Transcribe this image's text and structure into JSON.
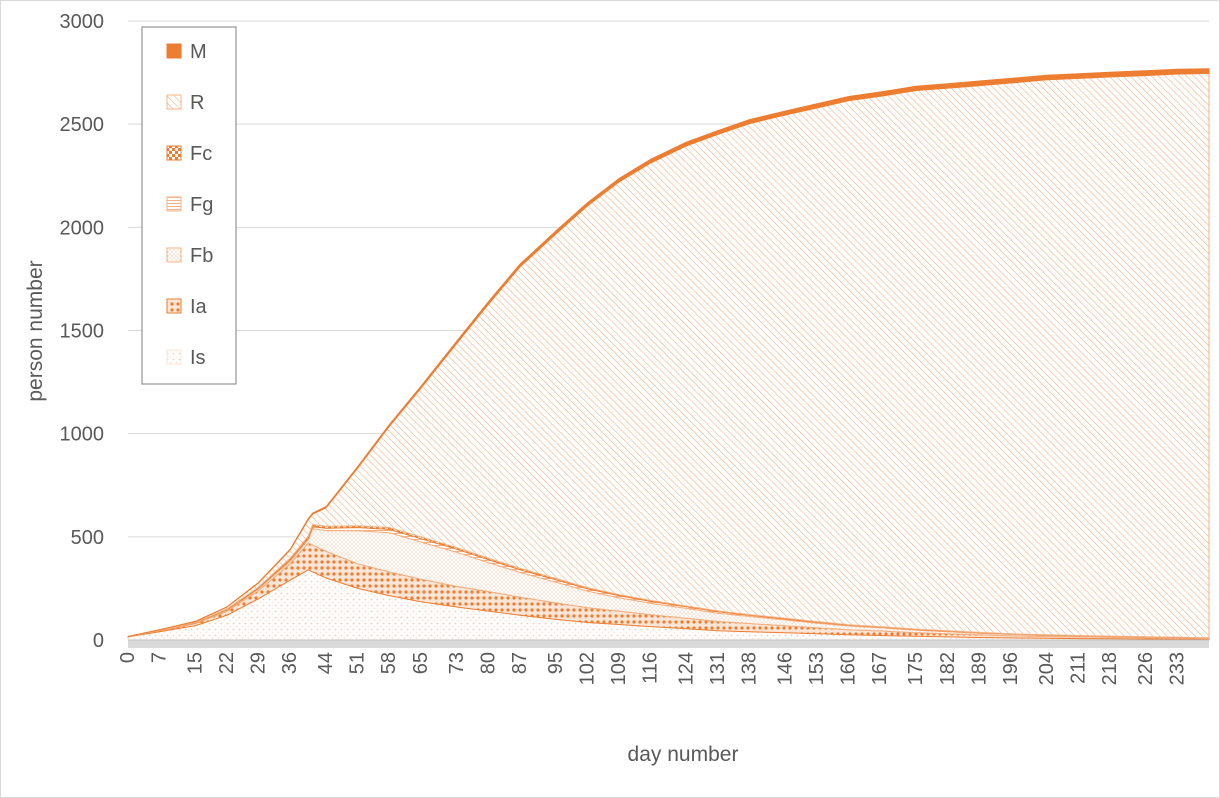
{
  "chart_data": {
    "type": "area",
    "stacked": true,
    "xlabel": "day number",
    "ylabel": "person number",
    "ylim": [
      0,
      3000
    ],
    "yticks": [
      0,
      500,
      1000,
      1500,
      2000,
      2500,
      3000
    ],
    "xlim": [
      0,
      240
    ],
    "xticks": [
      0,
      7,
      15,
      22,
      29,
      36,
      44,
      51,
      58,
      65,
      73,
      80,
      87,
      95,
      102,
      109,
      116,
      124,
      131,
      138,
      146,
      153,
      160,
      167,
      175,
      182,
      189,
      196,
      204,
      211,
      218,
      226,
      233
    ],
    "grid": "horizontal",
    "legend_position": "top-left",
    "x": [
      0,
      7,
      15,
      22,
      29,
      36,
      40,
      41,
      44,
      51,
      58,
      65,
      73,
      80,
      87,
      95,
      102,
      109,
      116,
      124,
      131,
      138,
      146,
      153,
      160,
      167,
      175,
      182,
      189,
      196,
      204,
      211,
      218,
      226,
      233,
      240
    ],
    "series": [
      {
        "name": "Is",
        "color": "#fbe5d6",
        "values": [
          15,
          40,
          70,
          120,
          200,
          290,
          340,
          330,
          300,
          250,
          215,
          185,
          160,
          140,
          120,
          100,
          85,
          75,
          65,
          55,
          45,
          40,
          35,
          30,
          25,
          22,
          18,
          15,
          12,
          10,
          8,
          7,
          6,
          5,
          4,
          3
        ]
      },
      {
        "name": "Ia",
        "color": "#ed7d31",
        "values": [
          2,
          5,
          10,
          20,
          40,
          80,
          130,
          130,
          130,
          120,
          115,
          110,
          100,
          95,
          88,
          80,
          72,
          65,
          58,
          50,
          45,
          40,
          34,
          29,
          25,
          22,
          18,
          15,
          13,
          11,
          9,
          8,
          7,
          6,
          5,
          4
        ]
      },
      {
        "name": "Fb",
        "color": "#f4b183",
        "values": [
          0,
          1,
          2,
          5,
          8,
          12,
          15,
          80,
          100,
          160,
          190,
          180,
          165,
          140,
          120,
          100,
          80,
          65,
          55,
          48,
          40,
          34,
          28,
          22,
          18,
          15,
          12,
          10,
          8,
          6,
          5,
          4,
          3,
          3,
          2,
          2
        ]
      },
      {
        "name": "Fg",
        "color": "#f4b183",
        "values": [
          0,
          1,
          1,
          2,
          4,
          6,
          8,
          10,
          12,
          15,
          16,
          16,
          15,
          14,
          13,
          12,
          11,
          10,
          9,
          8,
          7,
          6,
          5,
          5,
          4,
          4,
          3,
          3,
          3,
          2,
          2,
          2,
          2,
          1,
          1,
          1
        ]
      },
      {
        "name": "Fc",
        "color": "#ed7d31",
        "values": [
          0,
          1,
          2,
          3,
          5,
          8,
          10,
          10,
          9,
          9,
          9,
          9,
          8,
          8,
          7,
          6,
          6,
          5,
          5,
          4,
          4,
          3,
          3,
          3,
          2,
          2,
          2,
          2,
          1,
          1,
          1,
          1,
          1,
          1,
          1,
          1
        ]
      },
      {
        "name": "R",
        "color": "#f4b183",
        "values": [
          0,
          2,
          5,
          10,
          20,
          40,
          80,
          50,
          90,
          280,
          490,
          720,
          990,
          1230,
          1460,
          1670,
          1850,
          2000,
          2120,
          2230,
          2310,
          2380,
          2440,
          2490,
          2540,
          2570,
          2610,
          2630,
          2650,
          2670,
          2690,
          2700,
          2710,
          2720,
          2730,
          2735
        ]
      },
      {
        "name": "M",
        "color": "#ed7d31",
        "values": [
          0,
          0,
          1,
          1,
          2,
          3,
          5,
          5,
          6,
          7,
          8,
          9,
          11,
          12,
          13,
          14,
          15,
          16,
          17,
          18,
          18,
          19,
          19,
          20,
          20,
          21,
          21,
          21,
          22,
          22,
          22,
          22,
          23,
          23,
          23,
          23
        ]
      }
    ]
  }
}
